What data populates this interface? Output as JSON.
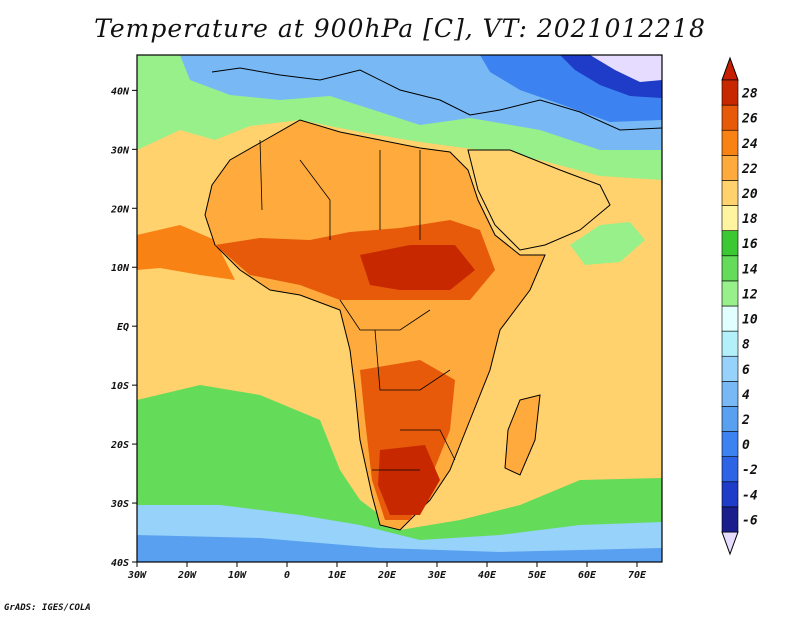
{
  "title": "Temperature at 900hPa [C], VT: 2021012218",
  "credit": "GrADS: IGES/COLA",
  "map": {
    "lon_range": [
      -30,
      75
    ],
    "lat_range": [
      -40,
      46
    ],
    "lon_ticks": [
      {
        "value": -30,
        "label": "30W"
      },
      {
        "value": -20,
        "label": "20W"
      },
      {
        "value": -10,
        "label": "10W"
      },
      {
        "value": 0,
        "label": "0"
      },
      {
        "value": 10,
        "label": "10E"
      },
      {
        "value": 20,
        "label": "20E"
      },
      {
        "value": 30,
        "label": "30E"
      },
      {
        "value": 40,
        "label": "40E"
      },
      {
        "value": 50,
        "label": "50E"
      },
      {
        "value": 60,
        "label": "60E"
      },
      {
        "value": 70,
        "label": "70E"
      }
    ],
    "lat_ticks": [
      {
        "value": 40,
        "label": "40N"
      },
      {
        "value": 30,
        "label": "30N"
      },
      {
        "value": 20,
        "label": "20N"
      },
      {
        "value": 10,
        "label": "10N"
      },
      {
        "value": 0,
        "label": "EQ"
      },
      {
        "value": -10,
        "label": "10S"
      },
      {
        "value": -20,
        "label": "20S"
      },
      {
        "value": -30,
        "label": "30S"
      },
      {
        "value": -40,
        "label": "40S"
      }
    ]
  },
  "colorbar": {
    "levels": [
      -6,
      -4,
      -2,
      0,
      2,
      4,
      6,
      8,
      10,
      12,
      14,
      16,
      18,
      20,
      22,
      24,
      26,
      28
    ],
    "colors": [
      "#1a1e8c",
      "#1e3cc8",
      "#2d64e6",
      "#3c82f0",
      "#5aa0f0",
      "#78b9f5",
      "#96d2fa",
      "#b4f0fa",
      "#e1ffff",
      "#97f08a",
      "#64dc5a",
      "#3cc832",
      "#fff5a0",
      "#ffd26e",
      "#ffaa3c",
      "#f88214",
      "#e65a0a",
      "#c82800"
    ],
    "below_color": "#e6dcff",
    "above_color": "#c81e00"
  }
}
